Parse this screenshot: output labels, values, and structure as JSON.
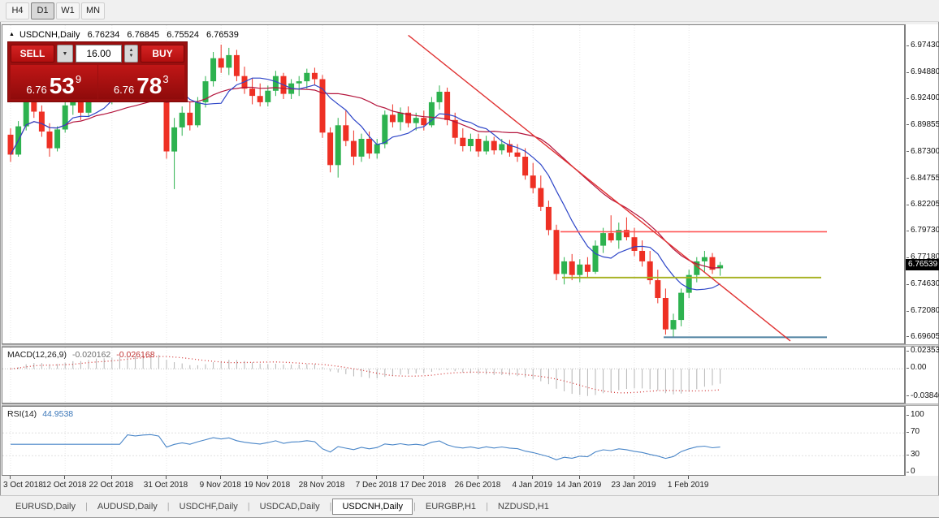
{
  "colors": {
    "candle_up": "#2db24f",
    "candle_down": "#ee3024",
    "ma_fast": "#2e46c8",
    "ma_slow": "#b4143c",
    "trendline": "#e03232",
    "hline_red": "#ff5454",
    "hline_olive": "#a8b224",
    "hline_blue": "#4f81a0",
    "macd_hist": "#b4b4b4",
    "macd_signal": "#d43c3c",
    "rsi_line": "#4a86c8",
    "panel_red": "#9a0f0f",
    "button_red": "#c81616",
    "price_badge_bg": "#000000"
  },
  "timeframe_toolbar": {
    "items": [
      "H4",
      "D1",
      "W1",
      "MN"
    ],
    "active_index": 1
  },
  "chart_header": {
    "marker": "▲",
    "symbol": "USDCNH,Daily",
    "open": "6.76234",
    "high": "6.76845",
    "low": "6.75524",
    "close": "6.76539"
  },
  "trade_panel": {
    "sell_label": "SELL",
    "buy_label": "BUY",
    "volume_value": "16.00",
    "dropdown_icon": "▼",
    "spin_up_icon": "▲",
    "spin_down_icon": "▼",
    "sell_price_prefix": "6.76",
    "sell_price_big": "53",
    "sell_price_sup": "9",
    "buy_price_prefix": "6.76",
    "buy_price_big": "78",
    "buy_price_sup": "3"
  },
  "price_axis_labels": [
    "6.97430",
    "6.94880",
    "6.92400",
    "6.89855",
    "6.87300",
    "6.84755",
    "6.82205",
    "6.79730",
    "6.77180",
    "6.74630",
    "6.72080",
    "6.69605"
  ],
  "current_price": "6.76539",
  "macd_panel": {
    "label": "MACD(12,26,9)",
    "main_value": "-0.020162",
    "signal_value": "-0.026168",
    "axis_labels": [
      "0.023534",
      "0.00",
      "-0.038466"
    ]
  },
  "rsi_panel": {
    "label": "RSI(14)",
    "value": "44.9538",
    "axis_labels": [
      "100",
      "70",
      "30",
      "0"
    ]
  },
  "date_axis": {
    "labels": [
      "3 Oct 2018",
      "12 Oct 2018",
      "22 Oct 2018",
      "31 Oct 2018",
      "9 Nov 2018",
      "19 Nov 2018",
      "28 Nov 2018",
      "7 Dec 2018",
      "17 Dec 2018",
      "26 Dec 2018",
      "4 Jan 2019",
      "14 Jan 2019",
      "23 Jan 2019",
      "1 Feb 2019"
    ],
    "tick_indices": [
      0,
      7,
      13,
      20,
      27,
      33,
      40,
      47,
      53,
      60,
      67,
      73,
      80,
      87
    ]
  },
  "bottom_tabs": {
    "tabs": [
      "EURUSD,Daily",
      "AUDUSD,Daily",
      "USDCHF,Daily",
      "USDCAD,Daily",
      "USDCNH,Daily",
      "EURGBP,H1",
      "NZDUSD,H1"
    ],
    "active_index": 4
  },
  "chart_data": {
    "type": "candlestick",
    "symbol": "USDCNH",
    "timeframe": "Daily",
    "title": "USDCNH Daily with MACD(12,26,9) and RSI(14)",
    "price_range": [
      6.6906,
      6.9946
    ],
    "candles_ohlc": [
      [
        6.89,
        6.896,
        6.864,
        6.871
      ],
      [
        6.871,
        6.903,
        6.869,
        6.898
      ],
      [
        6.898,
        6.936,
        6.894,
        6.929
      ],
      [
        6.929,
        6.938,
        6.906,
        6.912
      ],
      [
        6.912,
        6.918,
        6.888,
        6.893
      ],
      [
        6.893,
        6.901,
        6.869,
        6.877
      ],
      [
        6.877,
        6.898,
        6.874,
        6.895
      ],
      [
        6.895,
        6.923,
        6.892,
        6.918
      ],
      [
        6.918,
        6.931,
        6.909,
        6.926
      ],
      [
        6.926,
        6.932,
        6.904,
        6.911
      ],
      [
        6.911,
        6.93,
        6.907,
        6.927
      ],
      [
        6.927,
        6.946,
        6.923,
        6.941
      ],
      [
        6.941,
        6.945,
        6.921,
        6.927
      ],
      [
        6.927,
        6.941,
        6.919,
        6.936
      ],
      [
        6.936,
        6.949,
        6.93,
        6.944
      ],
      [
        6.944,
        6.956,
        6.938,
        6.951
      ],
      [
        6.951,
        6.958,
        6.94,
        6.945
      ],
      [
        6.945,
        6.959,
        6.941,
        6.954
      ],
      [
        6.954,
        6.963,
        6.946,
        6.958
      ],
      [
        6.958,
        6.964,
        6.947,
        6.951
      ],
      [
        6.951,
        6.956,
        6.867,
        6.874
      ],
      [
        6.874,
        6.906,
        6.838,
        6.897
      ],
      [
        6.897,
        6.917,
        6.889,
        6.911
      ],
      [
        6.911,
        6.921,
        6.894,
        6.899
      ],
      [
        6.899,
        6.926,
        6.897,
        6.921
      ],
      [
        6.921,
        6.946,
        6.916,
        6.941
      ],
      [
        6.941,
        6.969,
        6.936,
        6.963
      ],
      [
        6.963,
        6.976,
        6.949,
        6.954
      ],
      [
        6.954,
        6.973,
        6.947,
        6.966
      ],
      [
        6.966,
        6.971,
        6.941,
        6.946
      ],
      [
        6.946,
        6.955,
        6.929,
        6.934
      ],
      [
        6.934,
        6.944,
        6.919,
        6.927
      ],
      [
        6.927,
        6.939,
        6.917,
        6.921
      ],
      [
        6.921,
        6.937,
        6.917,
        6.932
      ],
      [
        6.932,
        6.951,
        6.927,
        6.946
      ],
      [
        6.946,
        6.949,
        6.924,
        6.929
      ],
      [
        6.929,
        6.943,
        6.924,
        6.939
      ],
      [
        6.939,
        6.946,
        6.927,
        6.941
      ],
      [
        6.941,
        6.953,
        6.934,
        6.949
      ],
      [
        6.949,
        6.954,
        6.937,
        6.943
      ],
      [
        6.943,
        6.947,
        6.887,
        6.892
      ],
      [
        6.892,
        6.897,
        6.854,
        6.861
      ],
      [
        6.861,
        6.906,
        6.849,
        6.899
      ],
      [
        6.899,
        6.913,
        6.879,
        6.884
      ],
      [
        6.884,
        6.894,
        6.861,
        6.869
      ],
      [
        6.869,
        6.891,
        6.864,
        6.886
      ],
      [
        6.886,
        6.893,
        6.867,
        6.872
      ],
      [
        6.872,
        6.886,
        6.867,
        6.881
      ],
      [
        6.881,
        6.913,
        6.877,
        6.909
      ],
      [
        6.909,
        6.919,
        6.897,
        6.902
      ],
      [
        6.902,
        6.916,
        6.894,
        6.911
      ],
      [
        6.911,
        6.917,
        6.897,
        6.901
      ],
      [
        6.901,
        6.911,
        6.894,
        6.906
      ],
      [
        6.906,
        6.913,
        6.894,
        6.899
      ],
      [
        6.899,
        6.926,
        6.897,
        6.921
      ],
      [
        6.921,
        6.937,
        6.914,
        6.931
      ],
      [
        6.931,
        6.935,
        6.899,
        6.904
      ],
      [
        6.904,
        6.911,
        6.881,
        6.887
      ],
      [
        6.887,
        6.896,
        6.874,
        6.879
      ],
      [
        6.879,
        6.891,
        6.874,
        6.886
      ],
      [
        6.886,
        6.891,
        6.869,
        6.874
      ],
      [
        6.874,
        6.889,
        6.871,
        6.884
      ],
      [
        6.884,
        6.888,
        6.871,
        6.875
      ],
      [
        6.875,
        6.886,
        6.871,
        6.881
      ],
      [
        6.881,
        6.885,
        6.869,
        6.873
      ],
      [
        6.873,
        6.881,
        6.864,
        6.869
      ],
      [
        6.869,
        6.877,
        6.847,
        6.851
      ],
      [
        6.851,
        6.863,
        6.834,
        6.839
      ],
      [
        6.839,
        6.851,
        6.817,
        6.821
      ],
      [
        6.821,
        6.827,
        6.794,
        6.799
      ],
      [
        6.799,
        6.804,
        6.751,
        6.757
      ],
      [
        6.757,
        6.773,
        6.747,
        6.769
      ],
      [
        6.769,
        6.776,
        6.751,
        6.756
      ],
      [
        6.756,
        6.771,
        6.749,
        6.766
      ],
      [
        6.766,
        6.773,
        6.754,
        6.759
      ],
      [
        6.759,
        6.789,
        6.757,
        6.784
      ],
      [
        6.784,
        6.801,
        6.777,
        6.796
      ],
      [
        6.796,
        6.813,
        6.787,
        6.789
      ],
      [
        6.789,
        6.806,
        6.781,
        6.799
      ],
      [
        6.799,
        6.811,
        6.789,
        6.792
      ],
      [
        6.792,
        6.801,
        6.774,
        6.779
      ],
      [
        6.779,
        6.789,
        6.764,
        6.769
      ],
      [
        6.769,
        6.779,
        6.747,
        6.751
      ],
      [
        6.751,
        6.761,
        6.729,
        6.734
      ],
      [
        6.734,
        6.743,
        6.699,
        6.704
      ],
      [
        6.704,
        6.719,
        6.697,
        6.713
      ],
      [
        6.713,
        6.743,
        6.707,
        6.739
      ],
      [
        6.739,
        6.761,
        6.734,
        6.756
      ],
      [
        6.756,
        6.773,
        6.749,
        6.769
      ],
      [
        6.769,
        6.779,
        6.759,
        6.773
      ],
      [
        6.773,
        6.777,
        6.757,
        6.761
      ],
      [
        6.76234,
        6.76845,
        6.75524,
        6.76539
      ]
    ],
    "overlays": {
      "ma_fast_period": 8,
      "ma_slow_period": 21,
      "trendline": {
        "i1": 51,
        "p1": 6.985,
        "i2": 100,
        "p2": 6.693
      },
      "hlines": [
        {
          "price": 6.7973,
          "color_key": "hline_red",
          "start_frac": 0.619,
          "end_frac": 0.914,
          "width": 1.6
        },
        {
          "price": 6.7535,
          "color_key": "hline_olive",
          "start_frac": 0.621,
          "end_frac": 0.908,
          "width": 2
        },
        {
          "price": 6.6965,
          "color_key": "hline_blue",
          "start_frac": 0.733,
          "end_frac": 0.914,
          "width": 2
        }
      ]
    },
    "macd": {
      "fast": 12,
      "slow": 26,
      "signal": 9,
      "range": [
        -0.0466,
        0.0294
      ],
      "axis_values": [
        0.023534,
        0.0,
        -0.038466
      ],
      "current_main": -0.020162,
      "current_signal": -0.026168
    },
    "rsi": {
      "period": 14,
      "range": [
        0,
        100
      ],
      "levels": [
        70,
        30
      ],
      "axis_values": [
        100,
        70,
        30,
        0
      ],
      "current": 44.9538
    }
  }
}
